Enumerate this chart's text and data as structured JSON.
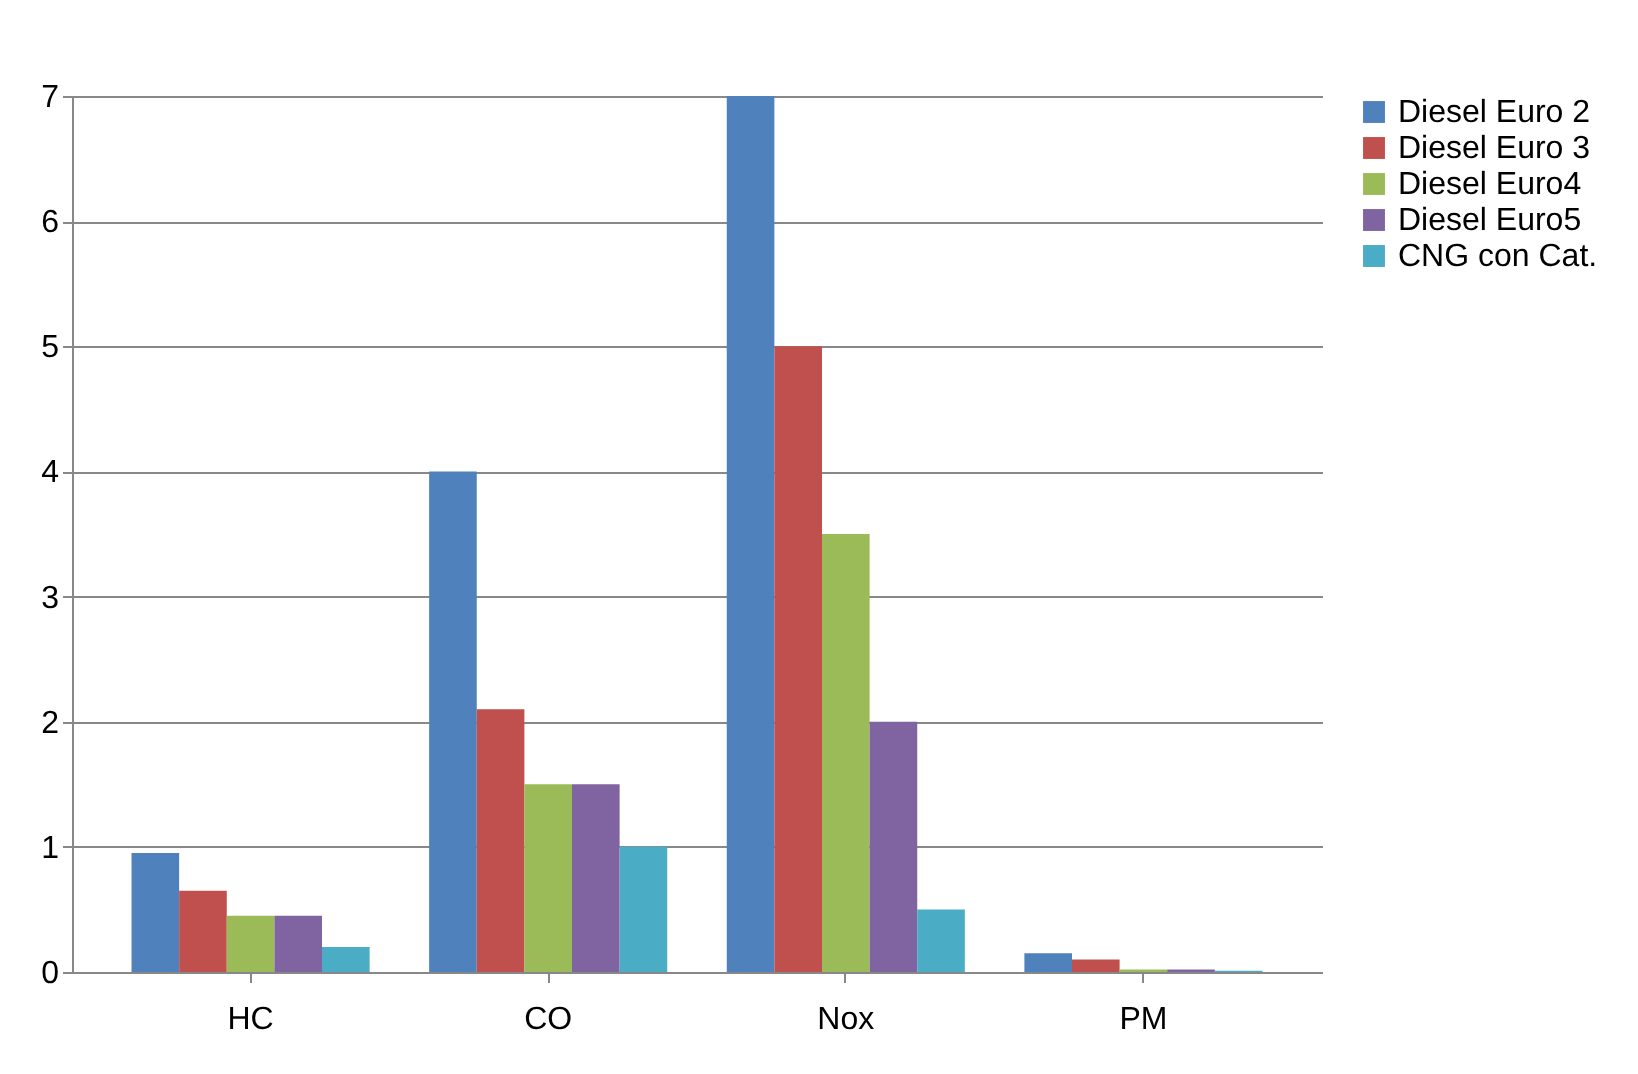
{
  "chart_data": {
    "type": "bar",
    "categories": [
      "HC",
      "CO",
      "Nox",
      "PM"
    ],
    "series": [
      {
        "name": "Diesel Euro 2",
        "color": "#4f81bd",
        "values": [
          0.95,
          4.0,
          7.0,
          0.15
        ]
      },
      {
        "name": "Diesel Euro 3",
        "color": "#c0504d",
        "values": [
          0.65,
          2.1,
          5.0,
          0.1
        ]
      },
      {
        "name": "Diesel Euro4",
        "color": "#9bbb59",
        "values": [
          0.45,
          1.5,
          3.5,
          0.02
        ]
      },
      {
        "name": "Diesel Euro5",
        "color": "#8064a2",
        "values": [
          0.45,
          1.5,
          2.0,
          0.02
        ]
      },
      {
        "name": "CNG con Cat.",
        "color": "#4bacc6",
        "values": [
          0.2,
          1.0,
          0.5,
          0.01
        ]
      }
    ],
    "ylim": [
      0,
      7
    ],
    "yticks": [
      0,
      1,
      2,
      3,
      4,
      5,
      6,
      7
    ],
    "grid": "y",
    "legend": "right"
  }
}
